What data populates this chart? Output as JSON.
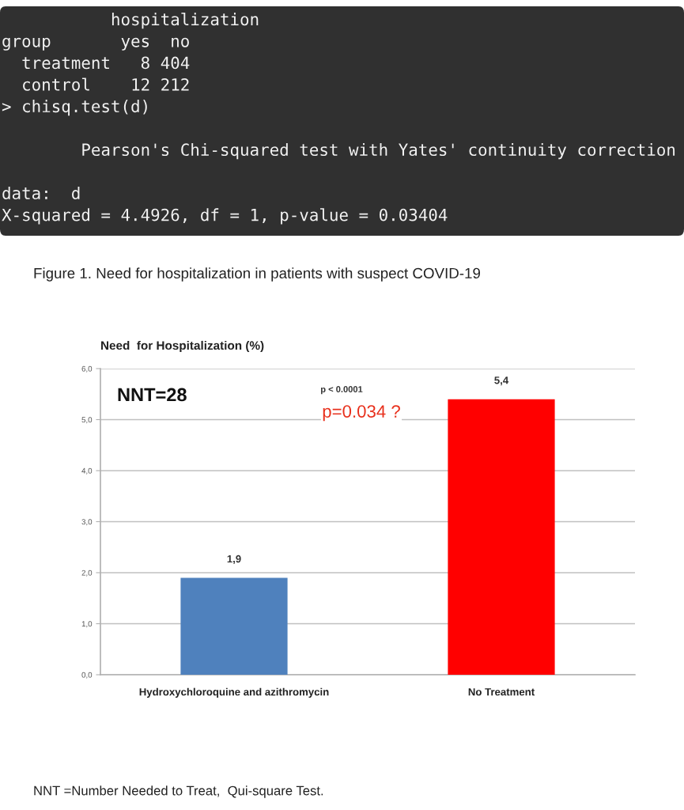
{
  "chart_data": {
    "type": "bar",
    "title": "Figure 1. Need for hospitalization in patients with suspect COVID-19",
    "subtitle": "Need  for Hospitalization (%)",
    "categories": [
      "Hydroxychloroquine and azithromycin",
      "No Treatment"
    ],
    "values": [
      1.9,
      5.4
    ],
    "colors": [
      "#4f81bd",
      "#ff0000"
    ],
    "value_labels": [
      "1,9",
      "5,4"
    ],
    "ylim": [
      0,
      6
    ],
    "yticks": [
      {
        "value": 0,
        "label": "0,0"
      },
      {
        "value": 1,
        "label": "1,0"
      },
      {
        "value": 2,
        "label": "2,0"
      },
      {
        "value": 3,
        "label": "3,0"
      },
      {
        "value": 4,
        "label": "4,0"
      },
      {
        "value": 5,
        "label": "5,0"
      },
      {
        "value": 6,
        "label": "6,0"
      }
    ],
    "grid": "y",
    "annotations": [
      "           hospitalization\ngroup       yes  no\n  treatment   8 404\n  control    12 212\n> chisq.test(d)\n\n        Pearson's Chi-squared test with Yates' continuity correction\n\ndata:  d\nX-squared = 4.4926, df = 1, p-value = 0.03404",
      "NNT=28",
      "p < 0.0001",
      "p=0.034 ?",
      "NNT =Number Needed to Treat,  Qui-square Test."
    ]
  }
}
